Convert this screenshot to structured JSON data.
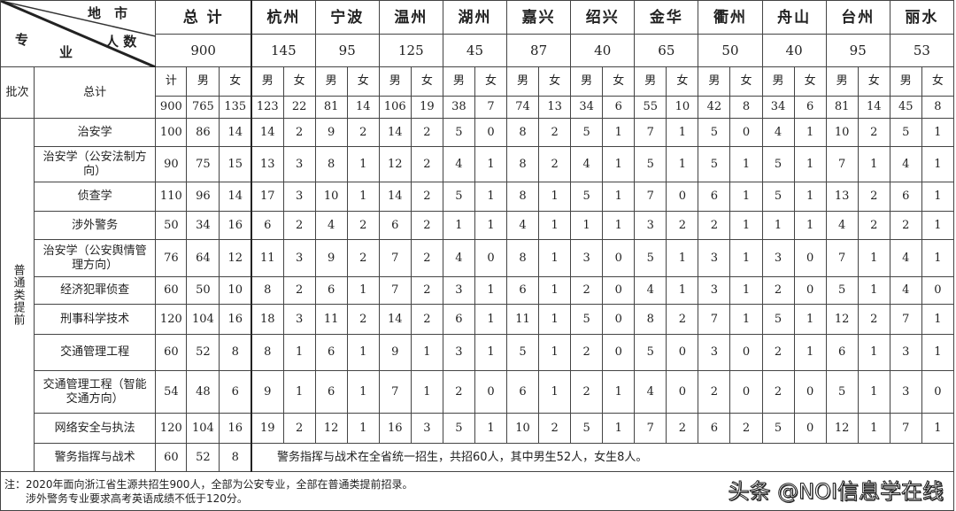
{
  "header": {
    "corner_top": "地　市",
    "corner_mid": "人 数",
    "corner_left": "专",
    "corner_bottom": "业",
    "total_label": "总 计",
    "grand_total": "900",
    "cities": [
      {
        "name": "杭州",
        "total": "145"
      },
      {
        "name": "宁波",
        "total": "95"
      },
      {
        "name": "温州",
        "total": "125"
      },
      {
        "name": "湖州",
        "total": "45"
      },
      {
        "name": "嘉兴",
        "total": "87"
      },
      {
        "name": "绍兴",
        "total": "40"
      },
      {
        "name": "金华",
        "total": "65"
      },
      {
        "name": "衢州",
        "total": "50"
      },
      {
        "name": "舟山",
        "total": "40"
      },
      {
        "name": "台州",
        "total": "95"
      },
      {
        "name": "丽水",
        "total": "53"
      }
    ],
    "batch_label": "批次",
    "sum_label": "总计",
    "ji": "计",
    "male": "男",
    "female": "女"
  },
  "totals_row": [
    "900",
    "765",
    "135",
    "123",
    "22",
    "81",
    "14",
    "106",
    "19",
    "38",
    "7",
    "74",
    "13",
    "34",
    "6",
    "55",
    "10",
    "42",
    "8",
    "34",
    "6",
    "81",
    "14",
    "45",
    "8"
  ],
  "batch_name": "普通类提前",
  "rows": [
    {
      "major": "治安学",
      "values": [
        "100",
        "86",
        "14",
        "14",
        "2",
        "9",
        "2",
        "14",
        "2",
        "5",
        "0",
        "8",
        "2",
        "5",
        "1",
        "7",
        "1",
        "5",
        "0",
        "4",
        "1",
        "10",
        "2",
        "5",
        "1"
      ]
    },
    {
      "major": "治安学（公安法制方向）",
      "values": [
        "90",
        "75",
        "15",
        "13",
        "3",
        "8",
        "1",
        "12",
        "2",
        "4",
        "1",
        "8",
        "2",
        "4",
        "1",
        "5",
        "1",
        "5",
        "1",
        "5",
        "1",
        "7",
        "1",
        "4",
        "1"
      ]
    },
    {
      "major": "侦查学",
      "values": [
        "110",
        "96",
        "14",
        "17",
        "3",
        "10",
        "1",
        "14",
        "2",
        "5",
        "1",
        "8",
        "1",
        "5",
        "1",
        "7",
        "0",
        "6",
        "1",
        "5",
        "1",
        "13",
        "2",
        "6",
        "1"
      ]
    },
    {
      "major": "涉外警务",
      "values": [
        "50",
        "34",
        "16",
        "6",
        "2",
        "4",
        "2",
        "6",
        "2",
        "1",
        "1",
        "4",
        "1",
        "1",
        "1",
        "3",
        "2",
        "2",
        "1",
        "1",
        "1",
        "4",
        "2",
        "2",
        "1"
      ]
    },
    {
      "major": "治安学（公安舆情管理方向）",
      "values": [
        "76",
        "64",
        "12",
        "11",
        "3",
        "9",
        "2",
        "7",
        "2",
        "4",
        "0",
        "8",
        "1",
        "3",
        "0",
        "5",
        "1",
        "3",
        "1",
        "3",
        "0",
        "7",
        "1",
        "4",
        "1"
      ]
    },
    {
      "major": "经济犯罪侦查",
      "values": [
        "60",
        "50",
        "10",
        "8",
        "2",
        "6",
        "1",
        "7",
        "2",
        "3",
        "1",
        "6",
        "1",
        "2",
        "0",
        "4",
        "1",
        "3",
        "1",
        "2",
        "0",
        "5",
        "1",
        "4",
        "0"
      ]
    },
    {
      "major": "刑事科学技术",
      "values": [
        "120",
        "104",
        "16",
        "18",
        "3",
        "11",
        "2",
        "14",
        "2",
        "6",
        "1",
        "11",
        "1",
        "5",
        "0",
        "8",
        "2",
        "7",
        "1",
        "5",
        "1",
        "12",
        "2",
        "7",
        "1"
      ]
    },
    {
      "major": "交通管理工程",
      "values": [
        "60",
        "52",
        "8",
        "8",
        "1",
        "6",
        "1",
        "9",
        "1",
        "3",
        "1",
        "5",
        "1",
        "2",
        "0",
        "5",
        "0",
        "3",
        "0",
        "2",
        "1",
        "6",
        "1",
        "3",
        "1"
      ]
    },
    {
      "major": "交通管理工程（智能交通方向）",
      "values": [
        "54",
        "48",
        "6",
        "9",
        "1",
        "6",
        "1",
        "7",
        "1",
        "2",
        "0",
        "6",
        "1",
        "2",
        "1",
        "4",
        "0",
        "2",
        "0",
        "2",
        "0",
        "5",
        "1",
        "3",
        "0"
      ]
    },
    {
      "major": "网络安全与执法",
      "values": [
        "120",
        "104",
        "16",
        "19",
        "2",
        "12",
        "1",
        "16",
        "3",
        "5",
        "1",
        "10",
        "2",
        "5",
        "1",
        "7",
        "2",
        "6",
        "2",
        "5",
        "0",
        "12",
        "1",
        "7",
        "1"
      ]
    }
  ],
  "last_row": {
    "major": "警务指挥与战术",
    "values": [
      "60",
      "52",
      "8"
    ],
    "note": "警务指挥与战术在全省统一招生，共招60人，其中男生52人，女生8人。"
  },
  "footnote": {
    "line1": "注：2020年面向浙江省生源共招生900人，全部为公安专业，全部在普通类提前招录。",
    "line2": "　　涉外警务专业要求高考英语成绩不低于120分。"
  },
  "watermark": "头条 @NOI信息学在线"
}
